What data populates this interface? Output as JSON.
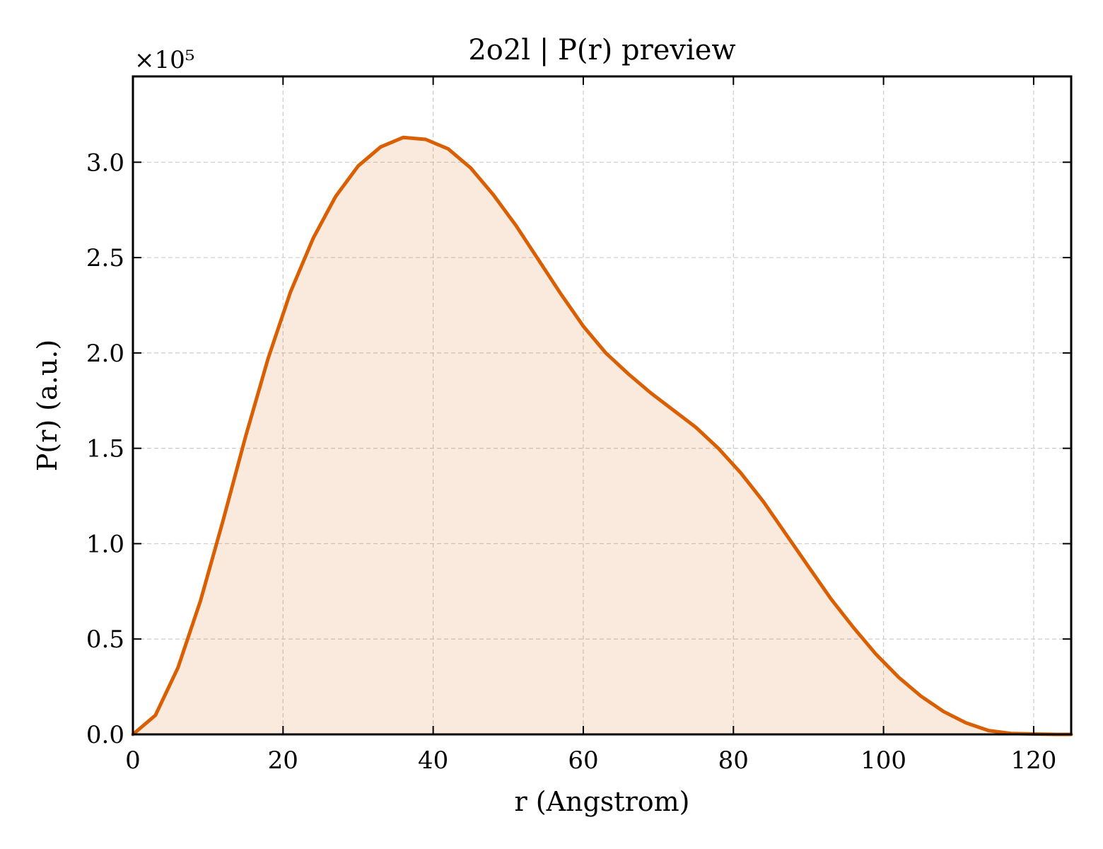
{
  "chart_data": {
    "type": "area",
    "title": "2o2l | P(r) preview",
    "xlabel": "r (Angstrom)",
    "ylabel": "P(r) (a.u.)",
    "y_scale_label": "×10⁵",
    "y_multiplier": 100000,
    "xlim": [
      0,
      125
    ],
    "ylim": [
      0,
      3.45
    ],
    "x_ticks": [
      0,
      20,
      40,
      60,
      80,
      100,
      120
    ],
    "x_tick_labels": [
      "0",
      "20",
      "40",
      "60",
      "80",
      "100",
      "120"
    ],
    "y_ticks": [
      0,
      0.5,
      1.0,
      1.5,
      2.0,
      2.5,
      3.0
    ],
    "y_tick_labels": [
      "0.0",
      "0.5",
      "1.0",
      "1.5",
      "2.0",
      "2.5",
      "3.0"
    ],
    "grid": true,
    "color": "#d95f02",
    "fill_color": "#d95f02",
    "fill_opacity": 0.13,
    "series": [
      {
        "x": [
          0,
          3,
          6,
          9,
          12,
          15,
          18,
          21,
          24,
          27,
          30,
          33,
          36,
          39,
          42,
          45,
          48,
          51,
          54,
          57,
          60,
          63,
          66,
          69,
          72,
          75,
          78,
          81,
          84,
          87,
          90,
          93,
          96,
          99,
          102,
          105,
          108,
          111,
          114,
          117,
          120,
          123,
          125
        ],
        "y": [
          0.0,
          0.1,
          0.35,
          0.7,
          1.12,
          1.56,
          1.97,
          2.32,
          2.6,
          2.82,
          2.98,
          3.08,
          3.13,
          3.12,
          3.07,
          2.97,
          2.83,
          2.67,
          2.49,
          2.31,
          2.14,
          2.0,
          1.89,
          1.79,
          1.7,
          1.61,
          1.5,
          1.37,
          1.22,
          1.05,
          0.88,
          0.71,
          0.56,
          0.42,
          0.3,
          0.2,
          0.12,
          0.06,
          0.02,
          0.005,
          0.002,
          0.0,
          0.0
        ]
      }
    ]
  }
}
